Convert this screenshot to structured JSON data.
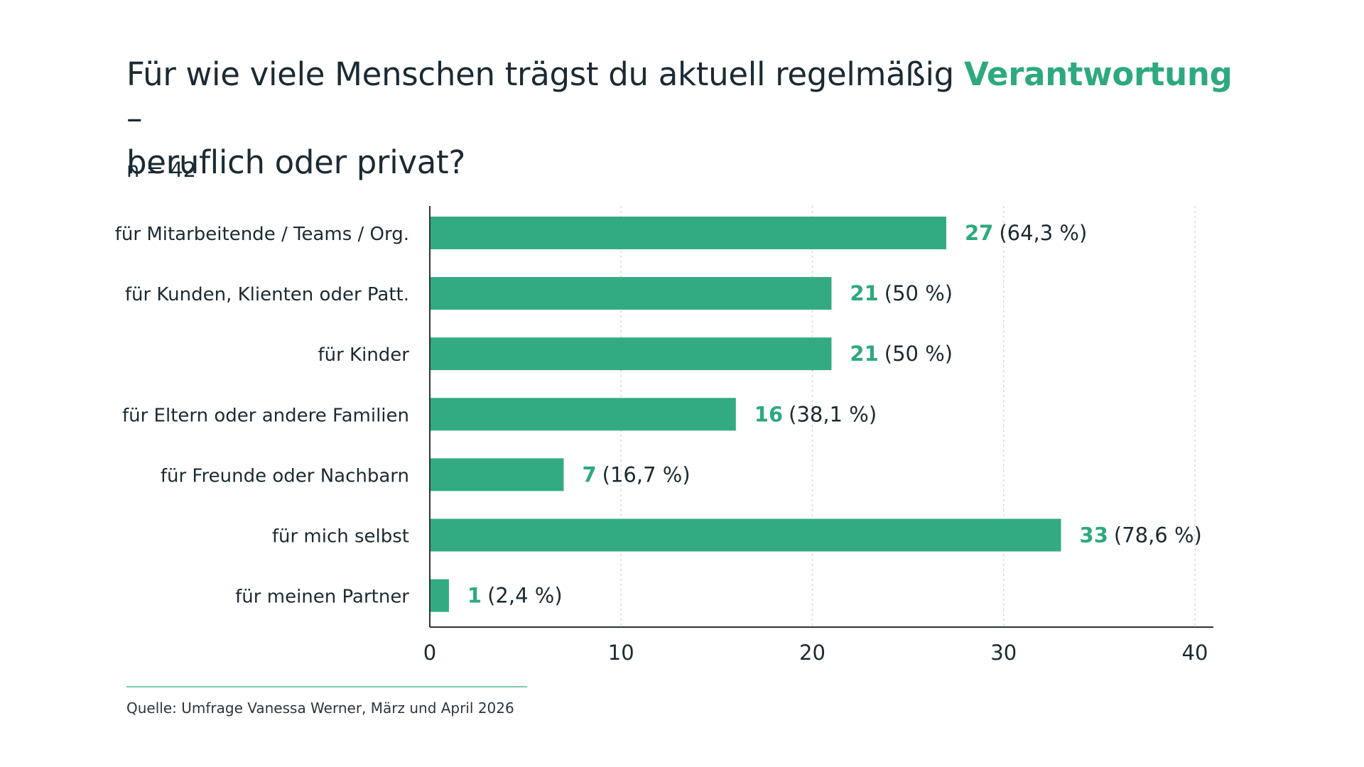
{
  "title": {
    "part1": "Für wie viele Menschen trägst du aktuell regelmäßig ",
    "highlight": "Verantwortung",
    "part2": " –",
    "line2": "beruflich oder privat?"
  },
  "sample_size": "n = 42",
  "source": "Quelle: Umfrage Vanessa Werner, März und April 2026",
  "colors": {
    "bar": "#33ab82",
    "accent": "#2ea97f",
    "text": "#1b2a33",
    "grid": "#d7dbde",
    "axis": "#2b3338"
  },
  "chart_data": {
    "type": "bar",
    "orientation": "horizontal",
    "categories": [
      "für Mitarbeitende / Teams / Org.",
      "für Kunden, Klienten oder Patt.",
      "für Kinder",
      "für Eltern oder andere Familien",
      "für Freunde oder Nachbarn",
      "für mich selbst",
      "für meinen Partner"
    ],
    "values": [
      27,
      21,
      21,
      16,
      7,
      33,
      1
    ],
    "value_labels": [
      "27",
      "21",
      "21",
      "16",
      "7",
      "33",
      "1"
    ],
    "percent_labels": [
      "(64,3 %)",
      "(50 %)",
      "(50 %)",
      "(38,1 %)",
      "(16,7 %)",
      "(78,6 %)",
      "(2,4 %)"
    ],
    "xlim": [
      0,
      40
    ],
    "xticks": [
      0,
      10,
      20,
      30,
      40
    ],
    "xtick_labels": [
      "0",
      "10",
      "20",
      "30",
      "40"
    ],
    "grid": "vertical dotted",
    "legend": "none"
  }
}
